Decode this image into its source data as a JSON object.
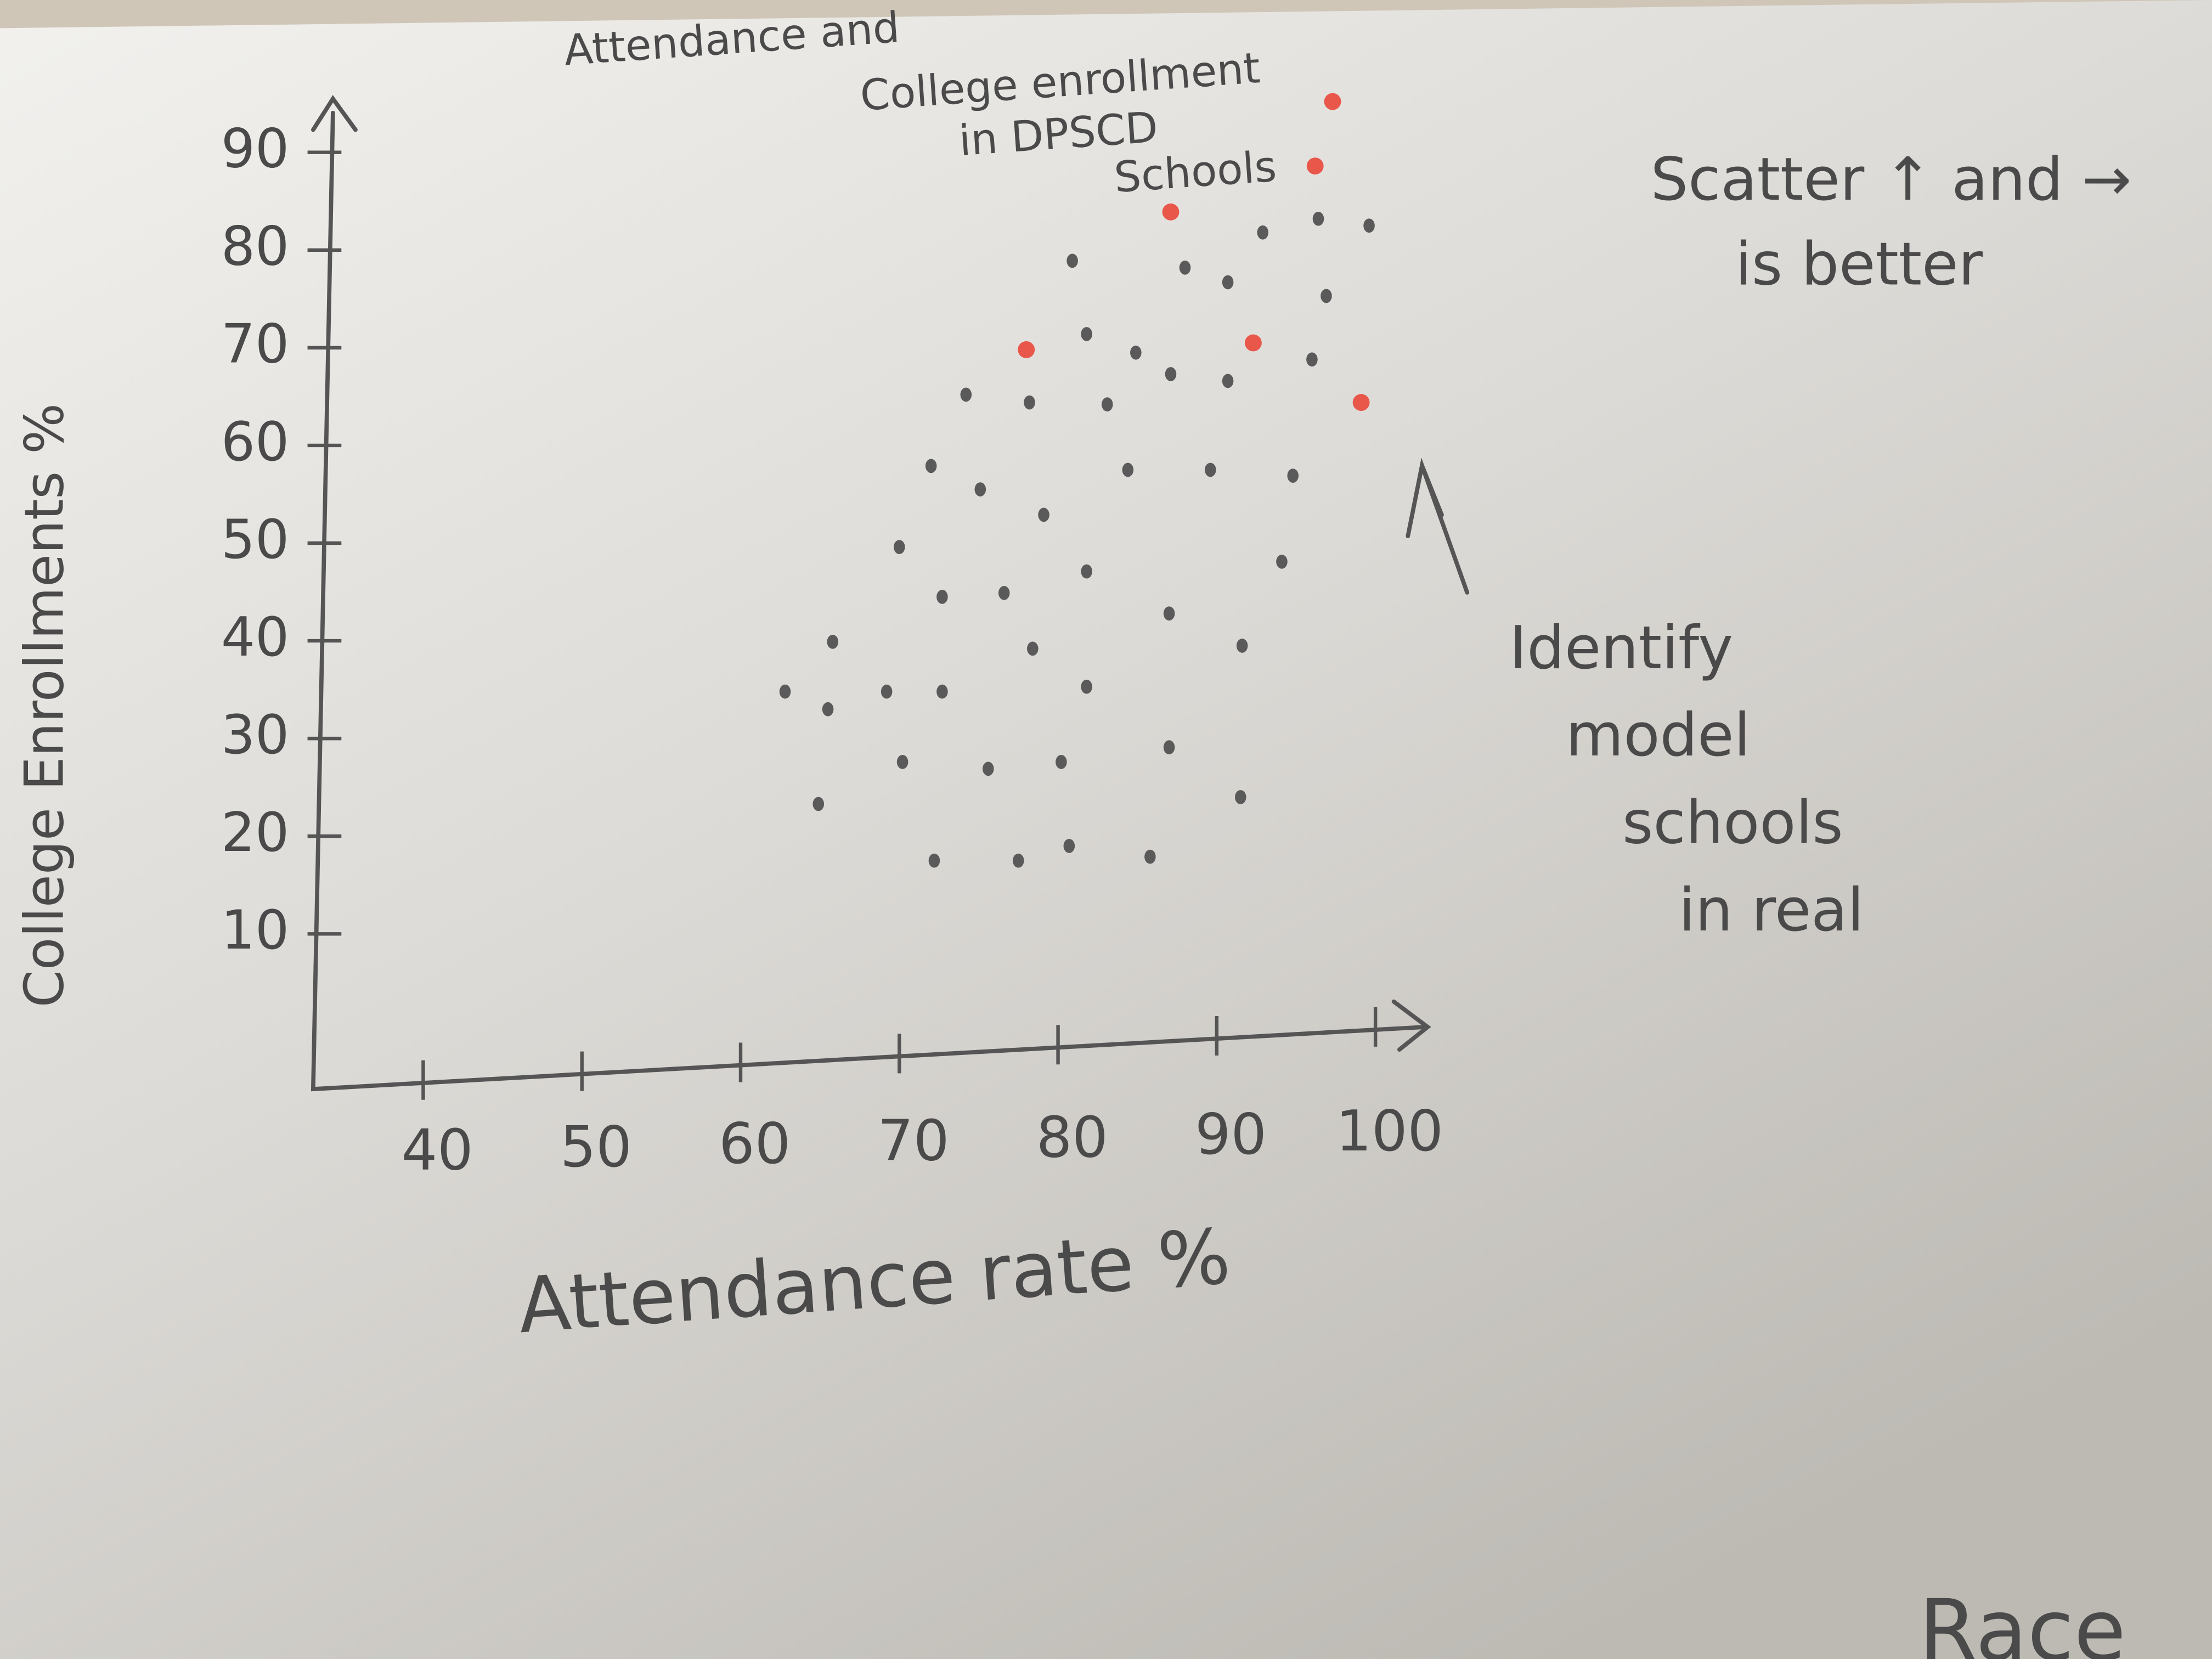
{
  "chart_data": {
    "type": "scatter",
    "title": [
      "Attendance and",
      "College enrollment",
      "in DPSCD",
      "Schools"
    ],
    "x_label": "Attendance rate %",
    "y_label": "College Enrollments %",
    "annotations": [
      [
        "Scatter ↑ and →",
        "is better"
      ],
      [
        "Identify",
        "model",
        "schools",
        "in real"
      ],
      [
        "Race"
      ]
    ],
    "xlim": [
      35,
      105
    ],
    "ylim": [
      0,
      100
    ],
    "xticks": [
      40,
      50,
      60,
      70,
      80,
      90,
      100
    ],
    "yticks": [
      10,
      20,
      30,
      40,
      50,
      60,
      70,
      80,
      90
    ],
    "grid": false,
    "series": [
      {
        "color": "#5a5a5a",
        "x": [
          65.8,
          62.8,
          65.5,
          69.2,
          72.7,
          81.8,
          78.4,
          70,
          72.7,
          76.6,
          81.8,
          87,
          91.6,
          94.1,
          75.1,
          79.1,
          72,
          84.4,
          89.6,
          94.8,
          78.2,
          74.2,
          83.1,
          84.9,
          87.1,
          90.7,
          96,
          81.8,
          96.9,
          90.7,
          88,
          92.9,
          96.4,
          99.6,
          80.9,
          64.9,
          70.2,
          75.6,
          80.2,
          87,
          91.5,
          72.2,
          77.5,
          85.8,
          80.7
        ],
        "values": [
          39.9,
          34.8,
          33,
          34.8,
          34.8,
          35.3,
          39.2,
          49.6,
          44.5,
          44.9,
          47.1,
          42.8,
          39.5,
          48.1,
          55.5,
          52.9,
          57.9,
          57.5,
          57.5,
          56.9,
          64.4,
          65.2,
          64.2,
          69.5,
          67.3,
          66.6,
          68.8,
          71.4,
          75.3,
          76.7,
          78.2,
          81.8,
          83.2,
          82.5,
          78.9,
          23.3,
          27.6,
          26.9,
          27.6,
          29.1,
          24,
          17.5,
          17.5,
          17.9,
          19
        ]
      },
      {
        "color": "#e8574a",
        "x": [
          78,
          92.3,
          87.1,
          96.2,
          97.3,
          99.1
        ],
        "values": [
          69.8,
          70.5,
          83.9,
          88.6,
          95.2,
          64.4
        ]
      }
    ]
  }
}
